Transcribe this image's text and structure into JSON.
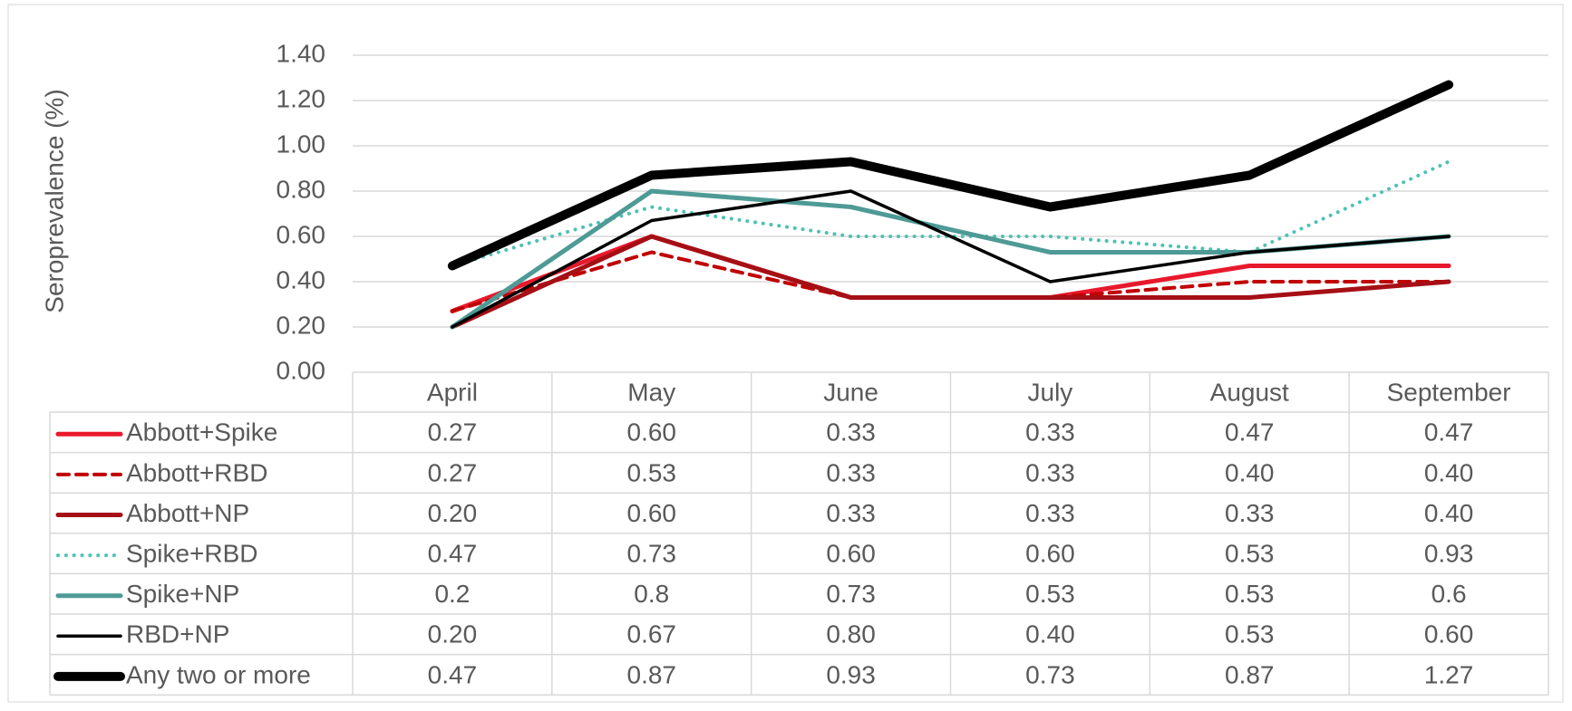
{
  "chart_data": {
    "type": "line",
    "y_label": "Seroprevalence (%)",
    "categories": [
      "April",
      "May",
      "June",
      "July",
      "August",
      "September"
    ],
    "ylim": [
      0,
      1.4
    ],
    "yticks": [
      {
        "value": 0,
        "label": "0.00"
      },
      {
        "value": 0.2,
        "label": "0.20"
      },
      {
        "value": 0.4,
        "label": "0.40"
      },
      {
        "value": 0.6,
        "label": "0.60"
      },
      {
        "value": 0.8,
        "label": "0.80"
      },
      {
        "value": 1.0,
        "label": "1.00"
      },
      {
        "value": 1.2,
        "label": "1.20"
      },
      {
        "value": 1.4,
        "label": "1.40"
      }
    ],
    "grid": true,
    "data_table": true,
    "series": [
      {
        "name": "Abbott+Spike",
        "color": "#e8192c",
        "dash": "solid",
        "width": 5,
        "values": [
          0.27,
          0.6,
          0.33,
          0.33,
          0.47,
          0.47
        ],
        "value_labels": [
          "0.27",
          "0.60",
          "0.33",
          "0.33",
          "0.47",
          "0.47"
        ]
      },
      {
        "name": "Abbott+RBD",
        "color": "#c00000",
        "dash": "dashed",
        "width": 4,
        "values": [
          0.27,
          0.53,
          0.33,
          0.33,
          0.4,
          0.4
        ],
        "value_labels": [
          "0.27",
          "0.53",
          "0.33",
          "0.33",
          "0.40",
          "0.40"
        ]
      },
      {
        "name": "Abbott+NP",
        "color": "#a50f15",
        "dash": "solid",
        "width": 5,
        "values": [
          0.2,
          0.6,
          0.33,
          0.33,
          0.33,
          0.4
        ],
        "value_labels": [
          "0.20",
          "0.60",
          "0.33",
          "0.33",
          "0.33",
          "0.40"
        ]
      },
      {
        "name": "Spike+RBD",
        "color": "#4dc1b5",
        "dash": "dotted",
        "width": 4,
        "values": [
          0.47,
          0.73,
          0.6,
          0.6,
          0.53,
          0.93
        ],
        "value_labels": [
          "0.47",
          "0.73",
          "0.60",
          "0.60",
          "0.53",
          "0.93"
        ]
      },
      {
        "name": "Spike+NP",
        "color": "#4e9a96",
        "dash": "solid",
        "width": 5,
        "values": [
          0.2,
          0.8,
          0.73,
          0.53,
          0.53,
          0.6
        ]
      },
      {
        "name": "RBD+NP",
        "color": "#000000",
        "dash": "solid",
        "width": 3.5,
        "values": [
          0.2,
          0.67,
          0.8,
          0.4,
          0.53,
          0.6
        ],
        "value_labels": [
          "0.20",
          "0.67",
          "0.80",
          "0.40",
          "0.53",
          "0.60"
        ]
      },
      {
        "name": "Any two or more",
        "color": "#000000",
        "dash": "solid",
        "width": 10,
        "values": [
          0.47,
          0.87,
          0.93,
          0.73,
          0.87,
          1.27
        ],
        "value_labels": [
          "0.47",
          "0.87",
          "0.93",
          "0.73",
          "0.87",
          "1.27"
        ]
      }
    ]
  }
}
